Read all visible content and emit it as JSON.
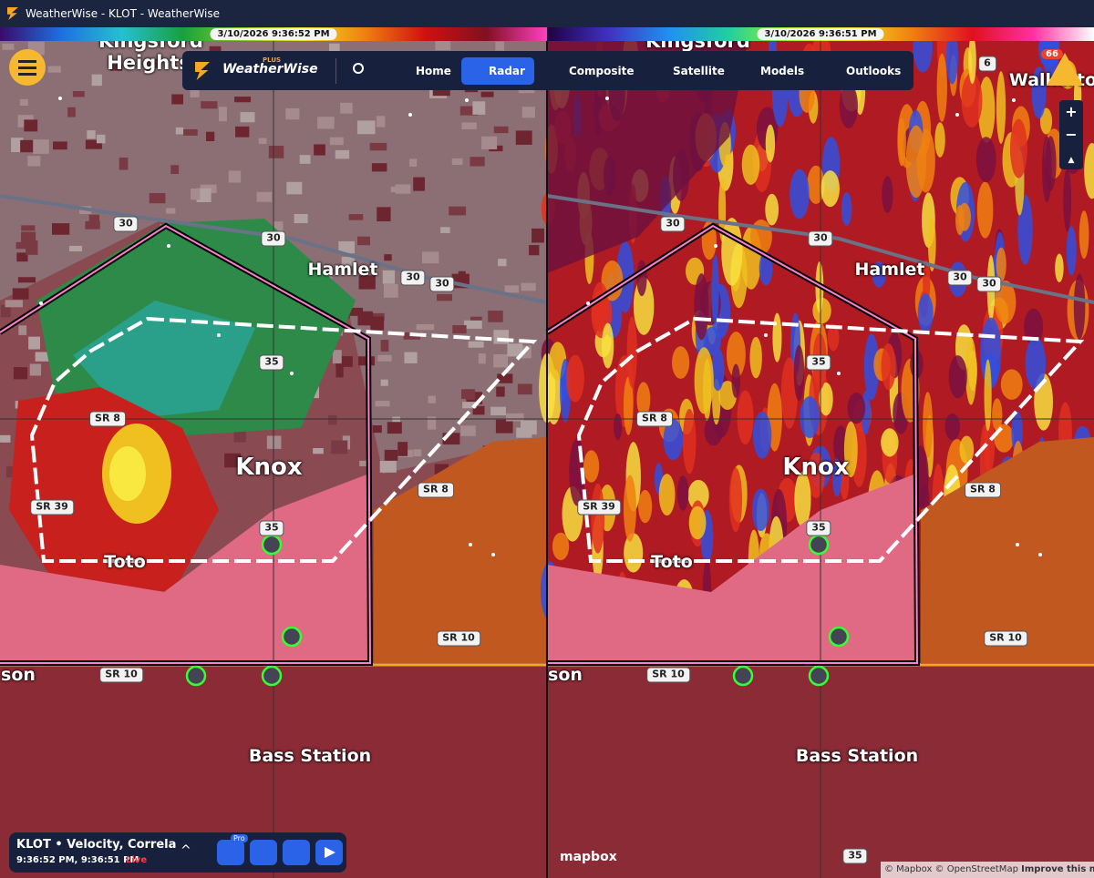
{
  "window": {
    "title": "WeatherWise - KLOT - WeatherWise"
  },
  "panels": [
    {
      "timestamp": "3/10/2026 9:36:52 PM"
    },
    {
      "timestamp": "3/10/2026 9:36:51 PM"
    }
  ],
  "nav": {
    "brand": "WeatherWise",
    "tier": "PLUS",
    "items": [
      "Home",
      "Radar",
      "Composite",
      "Satellite",
      "Models",
      "Outlooks"
    ]
  },
  "alerts": {
    "count": 66
  },
  "map": {
    "places": [
      "Kingsford Heights",
      "Hamlet",
      "Knox",
      "Toto",
      "Bass Station",
      "son",
      "Walkerto"
    ],
    "shields": [
      "30",
      "30",
      "30",
      "30",
      "35",
      "35",
      "SR 8",
      "SR 8",
      "SR 39",
      "SR 10",
      "SR 10",
      "6",
      "35"
    ]
  },
  "status": {
    "product": "KLOT • Velocity, Correlatio",
    "times": "9:36:52 PM, 9:36:51 PM",
    "live": "Live",
    "pro": "Pro"
  },
  "attribution": {
    "logo": "mapbox",
    "credits": "© Mapbox © OpenStreetMap",
    "improve": "Improve this map"
  }
}
